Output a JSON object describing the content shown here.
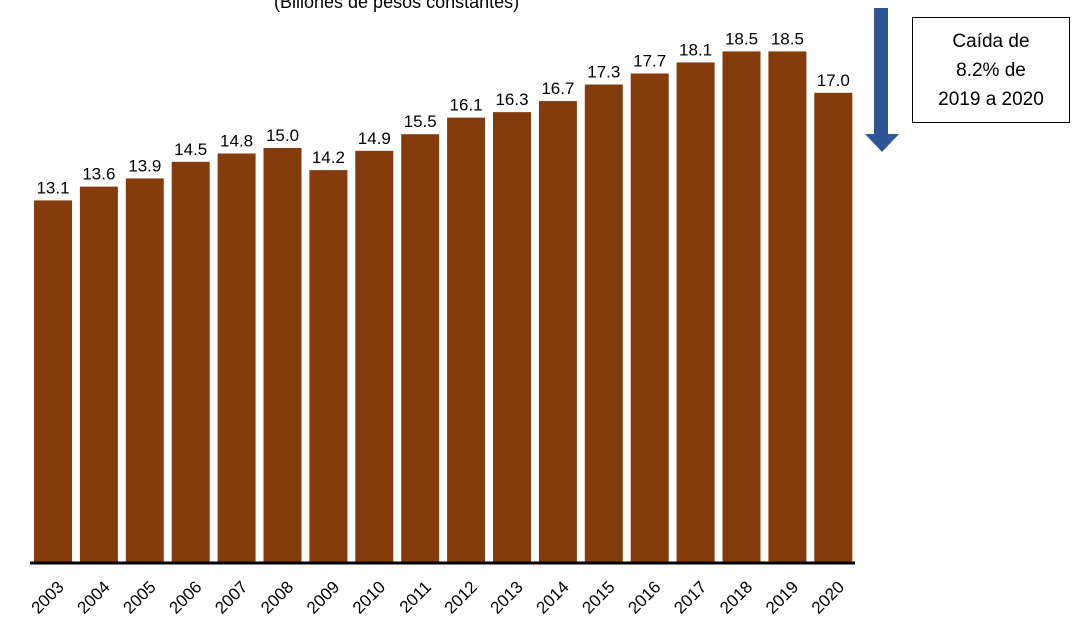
{
  "subtitle": "(Billones de pesos constantes)",
  "note": {
    "line1": "Caída de",
    "line2": "8.2% de",
    "line3": "2019 a 2020"
  },
  "colors": {
    "bar": "#843C0C",
    "arrow": "#2F5597",
    "axis": "#000000",
    "text": "#000000"
  },
  "chart_data": {
    "type": "bar",
    "title": "",
    "subtitle": "(Billones de pesos constantes)",
    "xlabel": "",
    "ylabel": "",
    "categories": [
      "2003",
      "2004",
      "2005",
      "2006",
      "2007",
      "2008",
      "2009",
      "2010",
      "2011",
      "2012",
      "2013",
      "2014",
      "2015",
      "2016",
      "2017",
      "2018",
      "2019",
      "2020"
    ],
    "values": [
      13.1,
      13.6,
      13.9,
      14.5,
      14.8,
      15.0,
      14.2,
      14.9,
      15.5,
      16.1,
      16.3,
      16.7,
      17.3,
      17.7,
      18.1,
      18.5,
      18.5,
      17.0
    ],
    "value_labels": [
      "13.1",
      "13.6",
      "13.9",
      "14.5",
      "14.8",
      "15.0",
      "14.2",
      "14.9",
      "15.5",
      "16.1",
      "16.3",
      "16.7",
      "17.3",
      "17.7",
      "18.1",
      "18.5",
      "18.5",
      "17.0"
    ],
    "grid": false,
    "legend": "none",
    "data_labels": true
  }
}
